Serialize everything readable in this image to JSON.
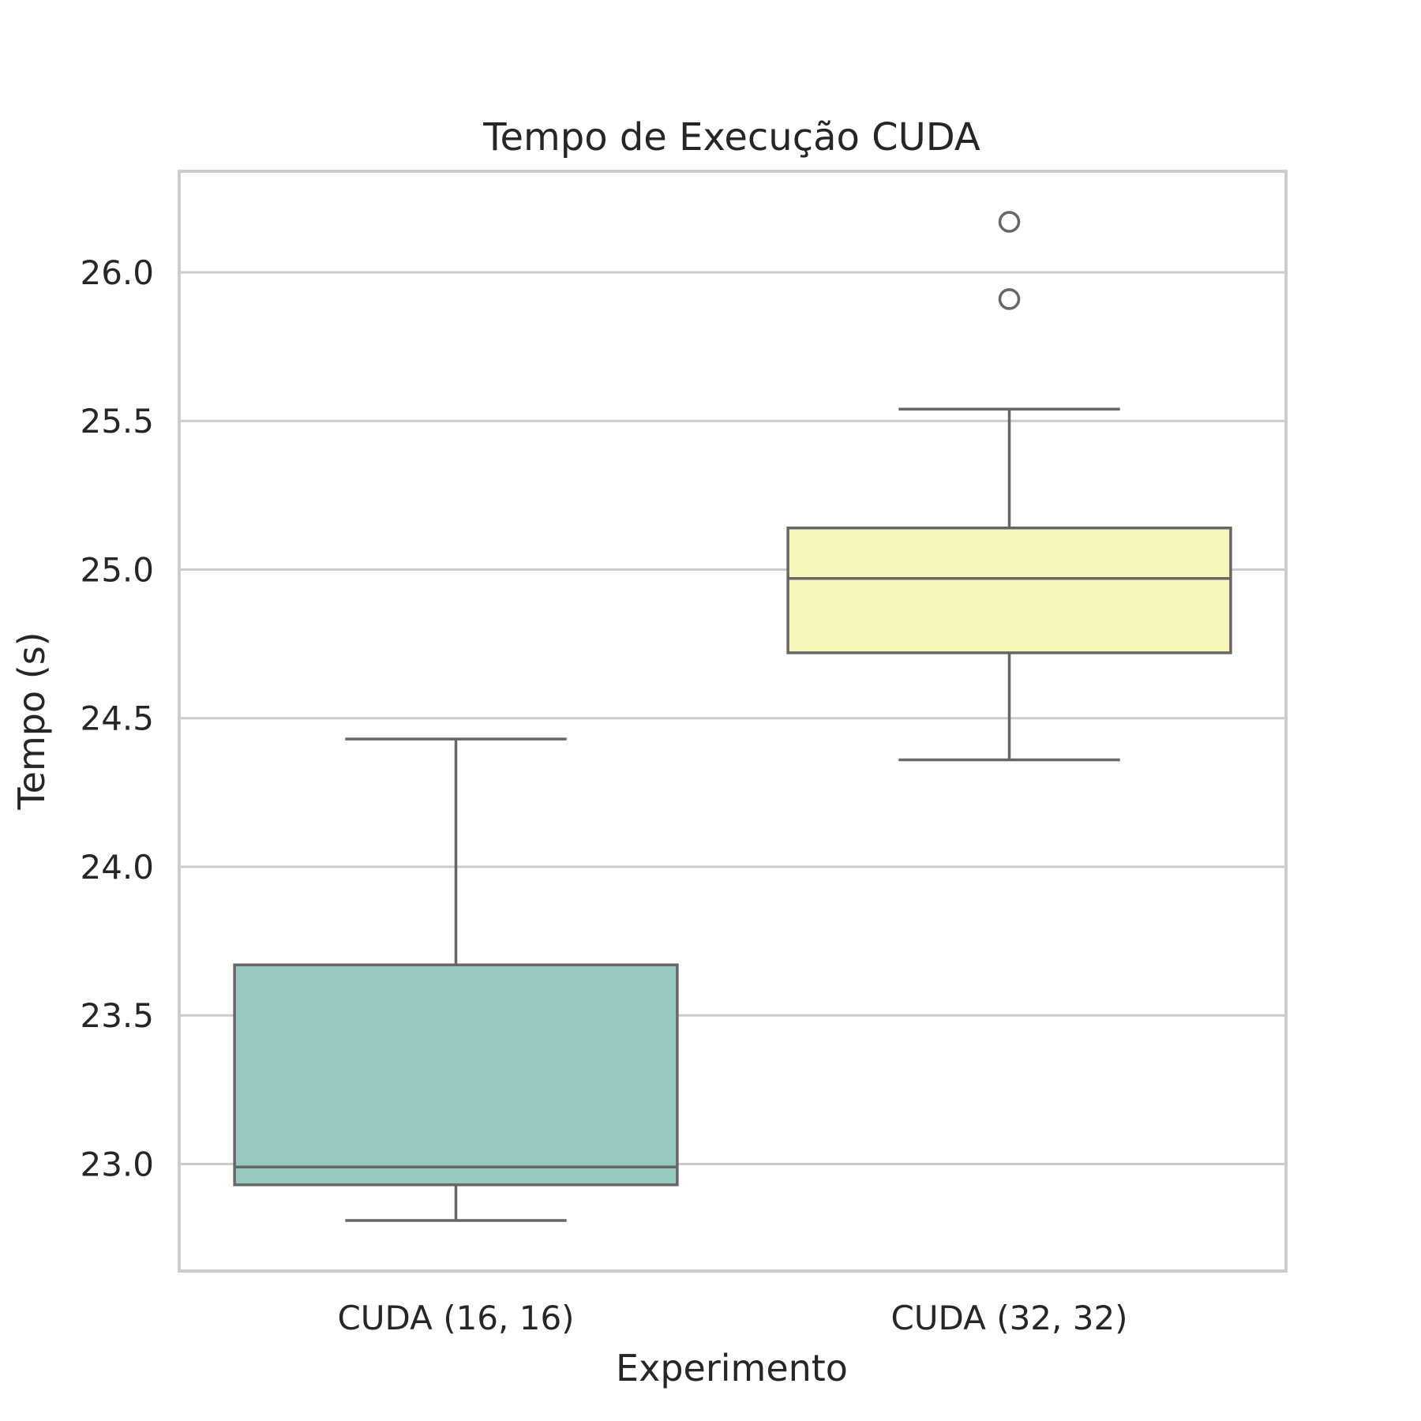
{
  "chart_data": {
    "type": "box",
    "title": "Tempo de Execução CUDA",
    "xlabel": "Experimento",
    "ylabel": "Tempo (s)",
    "categories": [
      "CUDA (16, 16)",
      "CUDA (32, 32)"
    ],
    "ylim": [
      22.64,
      26.34
    ],
    "yticks": [
      23.0,
      23.5,
      24.0,
      24.5,
      25.0,
      25.5,
      26.0
    ],
    "ytick_labels": [
      "23.0",
      "23.5",
      "24.0",
      "24.5",
      "25.0",
      "25.5",
      "26.0"
    ],
    "grid": "horizontal",
    "boxes": [
      {
        "category": "CUDA (16, 16)",
        "whisker_low": 22.81,
        "q1": 22.93,
        "median": 22.99,
        "q3": 23.67,
        "whisker_high": 24.43,
        "outliers": [],
        "color": "#98c9c0"
      },
      {
        "category": "CUDA (32, 32)",
        "whisker_low": 24.36,
        "q1": 24.72,
        "median": 24.97,
        "q3": 25.14,
        "whisker_high": 25.54,
        "outliers": [
          26.17,
          25.91
        ],
        "color": "#f6f6bd"
      }
    ],
    "colors": {
      "box_edge": "#666666",
      "grid": "#cccccc",
      "frame": "#cccccc",
      "text": "#262626"
    }
  }
}
